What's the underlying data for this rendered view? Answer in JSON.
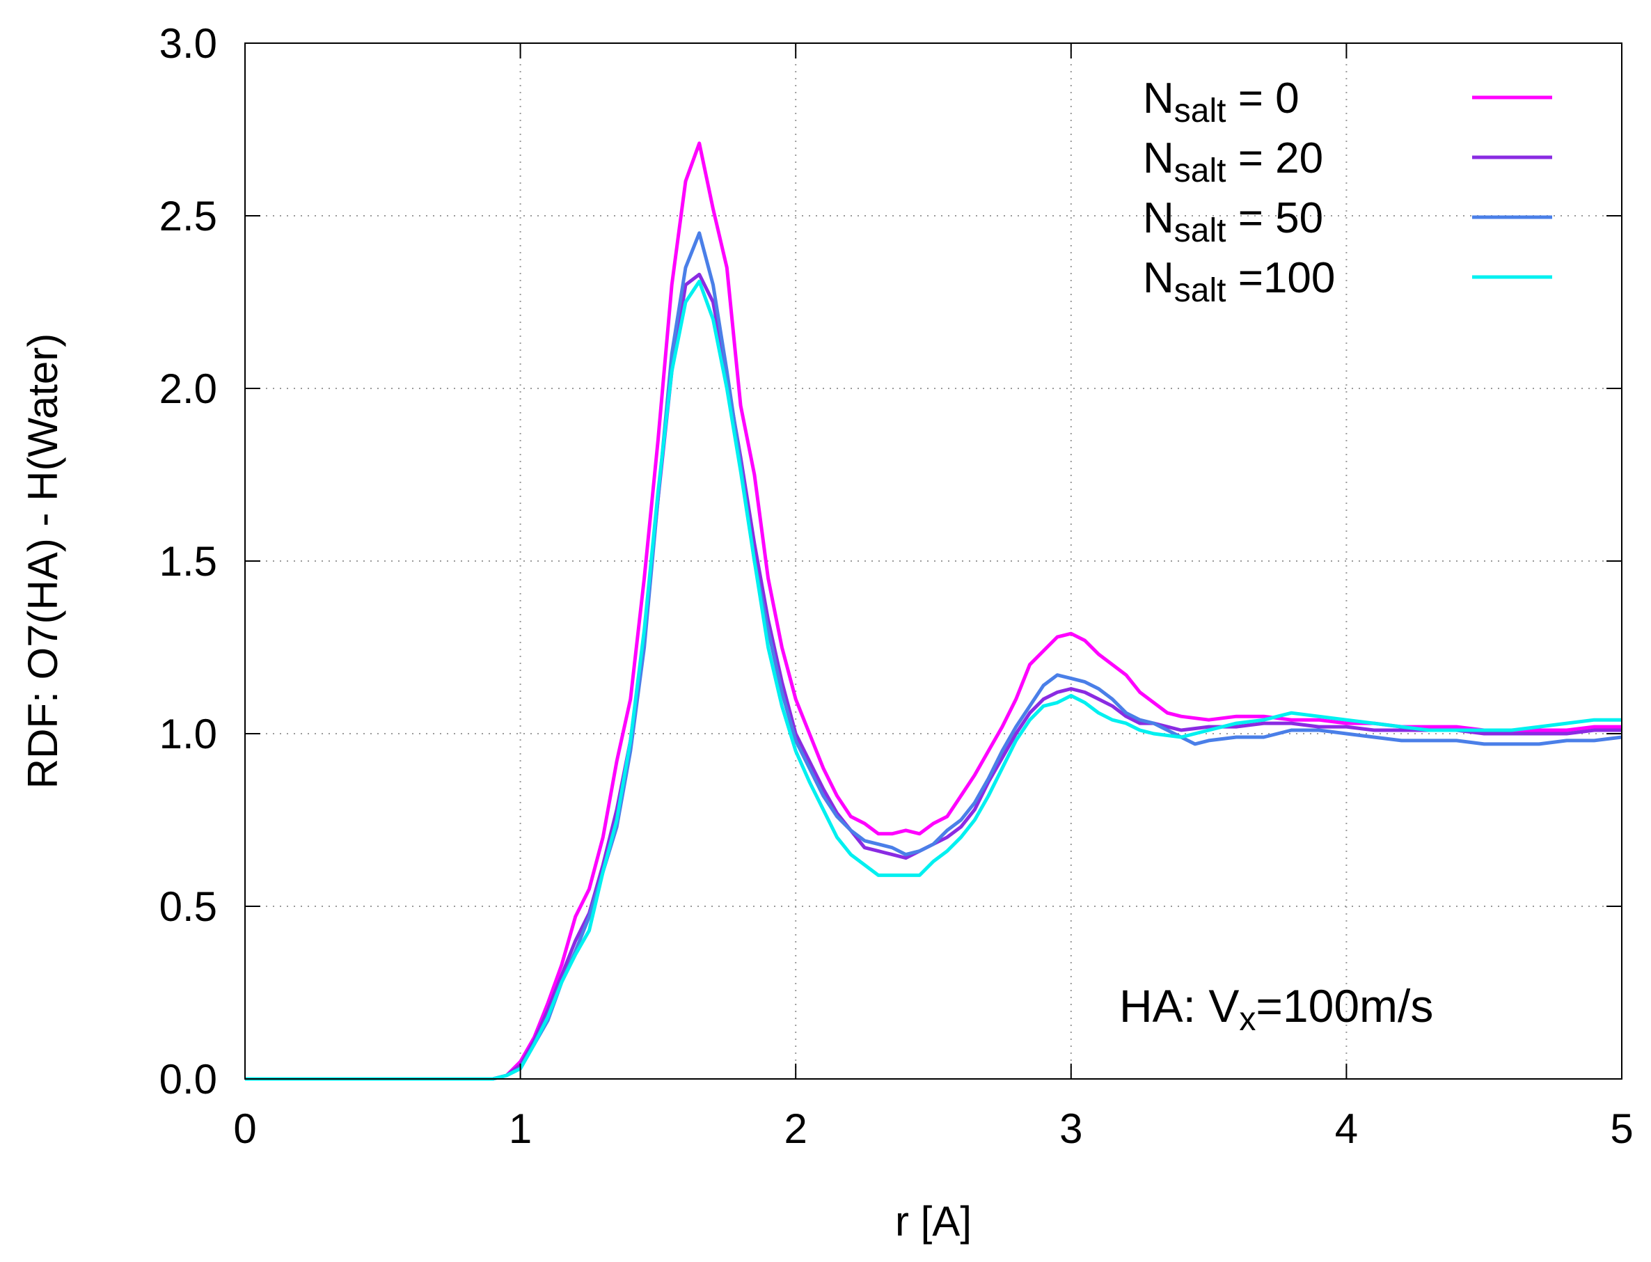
{
  "chart_data": {
    "type": "line",
    "title": "",
    "xlabel": "r  [A]",
    "ylabel": "RDF: O7(HA) - H(Water)",
    "xlim": [
      0,
      5
    ],
    "ylim": [
      0,
      3.0
    ],
    "xticks": [
      0,
      1,
      2,
      3,
      4,
      5
    ],
    "xtick_labels": [
      "0",
      "1",
      "2",
      "3",
      "4",
      "5"
    ],
    "yticks": [
      0,
      0.5,
      1.0,
      1.5,
      2.0,
      2.5,
      3.0
    ],
    "ytick_labels": [
      "0.0",
      "0.5",
      "1.0",
      "1.5",
      "2.0",
      "2.5",
      "3.0"
    ],
    "grid": "dotted",
    "legend_position": "top-right",
    "annotation": {
      "prefix": "HA: V",
      "subscript": "x",
      "suffix": "=100m/s"
    },
    "series": [
      {
        "name": "Nsalt = 0",
        "legend_main": "N",
        "legend_sub": "salt",
        "legend_rest": " = 0",
        "color": "#ff00ff",
        "x": [
          0,
          0.9,
          0.95,
          1.0,
          1.05,
          1.1,
          1.15,
          1.2,
          1.25,
          1.3,
          1.35,
          1.4,
          1.45,
          1.5,
          1.55,
          1.6,
          1.65,
          1.7,
          1.75,
          1.8,
          1.85,
          1.9,
          1.95,
          2.0,
          2.05,
          2.1,
          2.15,
          2.2,
          2.25,
          2.3,
          2.35,
          2.4,
          2.45,
          2.5,
          2.55,
          2.6,
          2.65,
          2.7,
          2.75,
          2.8,
          2.85,
          2.9,
          2.95,
          3.0,
          3.05,
          3.1,
          3.15,
          3.2,
          3.25,
          3.3,
          3.35,
          3.4,
          3.5,
          3.6,
          3.7,
          3.8,
          3.9,
          4.0,
          4.1,
          4.2,
          4.3,
          4.4,
          4.5,
          4.6,
          4.7,
          4.8,
          4.9,
          5.0
        ],
        "y": [
          0,
          0,
          0.01,
          0.05,
          0.12,
          0.22,
          0.33,
          0.47,
          0.55,
          0.7,
          0.92,
          1.1,
          1.45,
          1.85,
          2.3,
          2.6,
          2.71,
          2.52,
          2.35,
          1.95,
          1.75,
          1.45,
          1.25,
          1.1,
          1.0,
          0.9,
          0.82,
          0.76,
          0.74,
          0.71,
          0.71,
          0.72,
          0.71,
          0.74,
          0.76,
          0.82,
          0.88,
          0.95,
          1.02,
          1.1,
          1.2,
          1.24,
          1.28,
          1.29,
          1.27,
          1.23,
          1.2,
          1.17,
          1.12,
          1.09,
          1.06,
          1.05,
          1.04,
          1.05,
          1.05,
          1.04,
          1.04,
          1.03,
          1.03,
          1.02,
          1.02,
          1.02,
          1.01,
          1.01,
          1.01,
          1.01,
          1.02,
          1.02
        ]
      },
      {
        "name": "Nsalt = 20",
        "legend_main": "N",
        "legend_sub": "salt",
        "legend_rest": " = 20",
        "color": "#8a2be2",
        "x": [
          0,
          0.9,
          0.95,
          1.0,
          1.05,
          1.1,
          1.15,
          1.2,
          1.25,
          1.3,
          1.35,
          1.4,
          1.45,
          1.5,
          1.55,
          1.6,
          1.65,
          1.7,
          1.75,
          1.8,
          1.85,
          1.9,
          1.95,
          2.0,
          2.05,
          2.1,
          2.15,
          2.2,
          2.25,
          2.3,
          2.35,
          2.4,
          2.45,
          2.5,
          2.55,
          2.6,
          2.65,
          2.7,
          2.75,
          2.8,
          2.85,
          2.9,
          2.95,
          3.0,
          3.05,
          3.1,
          3.15,
          3.2,
          3.25,
          3.3,
          3.35,
          3.4,
          3.5,
          3.6,
          3.7,
          3.8,
          3.9,
          4.0,
          4.1,
          4.2,
          4.3,
          4.4,
          4.5,
          4.6,
          4.7,
          4.8,
          4.9,
          5.0
        ],
        "y": [
          0,
          0,
          0.01,
          0.04,
          0.11,
          0.2,
          0.3,
          0.4,
          0.48,
          0.62,
          0.78,
          0.98,
          1.28,
          1.68,
          2.05,
          2.3,
          2.33,
          2.25,
          2.03,
          1.8,
          1.55,
          1.33,
          1.15,
          1.0,
          0.92,
          0.84,
          0.77,
          0.72,
          0.67,
          0.66,
          0.65,
          0.64,
          0.66,
          0.68,
          0.7,
          0.73,
          0.78,
          0.86,
          0.93,
          1.0,
          1.06,
          1.1,
          1.12,
          1.13,
          1.12,
          1.1,
          1.08,
          1.05,
          1.03,
          1.03,
          1.02,
          1.01,
          1.02,
          1.02,
          1.03,
          1.03,
          1.02,
          1.02,
          1.01,
          1.01,
          1.01,
          1.01,
          1.0,
          1.0,
          1.0,
          1.0,
          1.01,
          1.01
        ]
      },
      {
        "name": "Nsalt = 50",
        "legend_main": "N",
        "legend_sub": "salt",
        "legend_rest": " = 50",
        "color": "#4a7fe8",
        "x": [
          0,
          0.9,
          0.95,
          1.0,
          1.05,
          1.1,
          1.15,
          1.2,
          1.25,
          1.3,
          1.35,
          1.4,
          1.45,
          1.5,
          1.55,
          1.6,
          1.65,
          1.7,
          1.75,
          1.8,
          1.85,
          1.9,
          1.95,
          2.0,
          2.05,
          2.1,
          2.15,
          2.2,
          2.25,
          2.3,
          2.35,
          2.4,
          2.45,
          2.5,
          2.55,
          2.6,
          2.65,
          2.7,
          2.75,
          2.8,
          2.85,
          2.9,
          2.95,
          3.0,
          3.05,
          3.1,
          3.15,
          3.2,
          3.25,
          3.3,
          3.35,
          3.4,
          3.45,
          3.5,
          3.6,
          3.7,
          3.8,
          3.9,
          4.0,
          4.1,
          4.2,
          4.3,
          4.4,
          4.5,
          4.6,
          4.7,
          4.8,
          4.9,
          5.0
        ],
        "y": [
          0,
          0,
          0.01,
          0.03,
          0.1,
          0.17,
          0.28,
          0.37,
          0.47,
          0.6,
          0.73,
          0.95,
          1.25,
          1.68,
          2.1,
          2.35,
          2.45,
          2.3,
          2.05,
          1.78,
          1.5,
          1.3,
          1.12,
          0.98,
          0.9,
          0.82,
          0.76,
          0.72,
          0.69,
          0.68,
          0.67,
          0.65,
          0.66,
          0.68,
          0.72,
          0.75,
          0.8,
          0.87,
          0.95,
          1.02,
          1.08,
          1.14,
          1.17,
          1.16,
          1.15,
          1.13,
          1.1,
          1.06,
          1.04,
          1.03,
          1.01,
          0.99,
          0.97,
          0.98,
          0.99,
          0.99,
          1.01,
          1.01,
          1.0,
          0.99,
          0.98,
          0.98,
          0.98,
          0.97,
          0.97,
          0.97,
          0.98,
          0.98,
          0.99
        ]
      },
      {
        "name": "Nsalt =100",
        "legend_main": "N",
        "legend_sub": "salt",
        "legend_rest": " =100",
        "color": "#00f0f0",
        "x": [
          0,
          0.9,
          0.95,
          1.0,
          1.05,
          1.1,
          1.15,
          1.2,
          1.25,
          1.3,
          1.35,
          1.4,
          1.45,
          1.5,
          1.55,
          1.6,
          1.65,
          1.7,
          1.75,
          1.8,
          1.85,
          1.9,
          1.95,
          2.0,
          2.05,
          2.1,
          2.15,
          2.2,
          2.25,
          2.3,
          2.35,
          2.4,
          2.45,
          2.5,
          2.55,
          2.6,
          2.65,
          2.7,
          2.75,
          2.8,
          2.85,
          2.9,
          2.95,
          3.0,
          3.05,
          3.1,
          3.15,
          3.2,
          3.25,
          3.3,
          3.4,
          3.5,
          3.6,
          3.7,
          3.8,
          3.9,
          4.0,
          4.1,
          4.2,
          4.3,
          4.4,
          4.5,
          4.6,
          4.7,
          4.8,
          4.9,
          5.0
        ],
        "y": [
          0,
          0,
          0.01,
          0.03,
          0.1,
          0.18,
          0.28,
          0.36,
          0.43,
          0.6,
          0.75,
          0.98,
          1.3,
          1.7,
          2.05,
          2.25,
          2.31,
          2.2,
          2.0,
          1.76,
          1.5,
          1.25,
          1.08,
          0.95,
          0.86,
          0.78,
          0.7,
          0.65,
          0.62,
          0.59,
          0.59,
          0.59,
          0.59,
          0.63,
          0.66,
          0.7,
          0.75,
          0.82,
          0.9,
          0.98,
          1.04,
          1.08,
          1.09,
          1.11,
          1.09,
          1.06,
          1.04,
          1.03,
          1.01,
          1.0,
          0.99,
          1.01,
          1.03,
          1.04,
          1.06,
          1.05,
          1.04,
          1.03,
          1.02,
          1.01,
          1.01,
          1.01,
          1.01,
          1.02,
          1.03,
          1.04,
          1.04
        ]
      }
    ]
  }
}
